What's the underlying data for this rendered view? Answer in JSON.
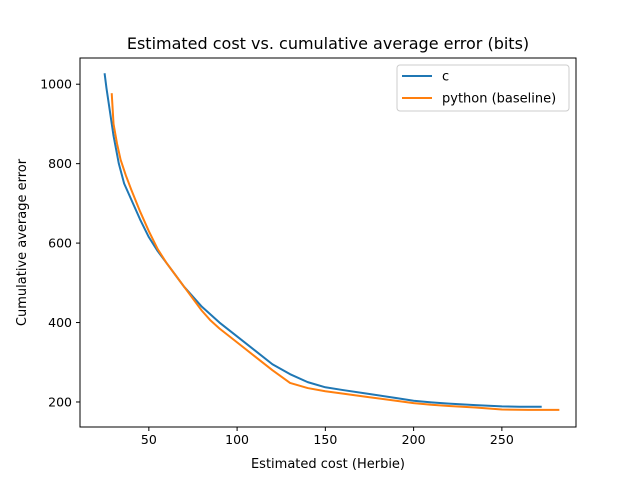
{
  "chart_data": {
    "type": "line",
    "title": "Estimated cost vs. cumulative average error (bits)",
    "xlabel": "Estimated cost (Herbie)",
    "ylabel": "Cumulative average error",
    "xlim": [
      11,
      292
    ],
    "ylim": [
      137,
      1066
    ],
    "x_ticks": [
      50,
      100,
      150,
      200,
      250
    ],
    "y_ticks": [
      200,
      400,
      600,
      800,
      1000
    ],
    "grid": false,
    "legend_position": "top-right",
    "series": [
      {
        "name": "c",
        "color": "#1f77b4",
        "points": [
          [
            25,
            1025
          ],
          [
            26,
            990
          ],
          [
            28,
            930
          ],
          [
            30,
            870
          ],
          [
            33,
            800
          ],
          [
            36,
            750
          ],
          [
            40,
            710
          ],
          [
            45,
            660
          ],
          [
            50,
            615
          ],
          [
            55,
            580
          ],
          [
            60,
            550
          ],
          [
            65,
            520
          ],
          [
            70,
            490
          ],
          [
            80,
            440
          ],
          [
            90,
            400
          ],
          [
            100,
            365
          ],
          [
            110,
            330
          ],
          [
            120,
            295
          ],
          [
            130,
            270
          ],
          [
            140,
            250
          ],
          [
            150,
            237
          ],
          [
            160,
            230
          ],
          [
            175,
            220
          ],
          [
            190,
            210
          ],
          [
            200,
            203
          ],
          [
            210,
            199
          ],
          [
            220,
            196
          ],
          [
            235,
            192
          ],
          [
            250,
            189
          ],
          [
            260,
            188
          ],
          [
            272,
            188
          ]
        ]
      },
      {
        "name": "python (baseline)",
        "color": "#ff7f0e",
        "points": [
          [
            29,
            975
          ],
          [
            30,
            900
          ],
          [
            32,
            850
          ],
          [
            34,
            810
          ],
          [
            37,
            770
          ],
          [
            40,
            735
          ],
          [
            45,
            680
          ],
          [
            50,
            630
          ],
          [
            55,
            585
          ],
          [
            60,
            550
          ],
          [
            65,
            520
          ],
          [
            70,
            490
          ],
          [
            80,
            430
          ],
          [
            85,
            405
          ],
          [
            90,
            385
          ],
          [
            100,
            350
          ],
          [
            110,
            315
          ],
          [
            120,
            280
          ],
          [
            130,
            248
          ],
          [
            140,
            235
          ],
          [
            150,
            227
          ],
          [
            160,
            221
          ],
          [
            175,
            212
          ],
          [
            190,
            203
          ],
          [
            200,
            197
          ],
          [
            210,
            193
          ],
          [
            220,
            190
          ],
          [
            235,
            186
          ],
          [
            250,
            181
          ],
          [
            265,
            180
          ],
          [
            282,
            180
          ]
        ]
      }
    ]
  }
}
